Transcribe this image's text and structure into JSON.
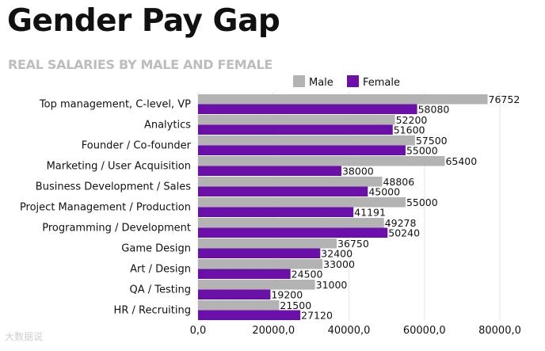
{
  "header": {
    "title": "Gender Pay Gap",
    "subtitle": "REAL SALARIES BY MALE AND FEMALE"
  },
  "watermark": "大数据说",
  "colors": {
    "male": "#b3b3b3",
    "female": "#6a0fa8"
  },
  "chart_data": {
    "type": "bar",
    "orientation": "horizontal",
    "categories": [
      "Top management, C-level, VP",
      "Analytics",
      "Founder / Co-founder",
      "Marketing / User Acquisition",
      "Business Development / Sales",
      "Project Management / Production",
      "Programming / Development",
      "Game Design",
      "Art / Design",
      "QA / Testing",
      "HR / Recruiting"
    ],
    "series": [
      {
        "name": "Male",
        "values": [
          76752,
          52200,
          57500,
          65400,
          48806,
          55000,
          49278,
          36750,
          33000,
          31000,
          21500
        ]
      },
      {
        "name": "Female",
        "values": [
          58080,
          51600,
          55000,
          38000,
          45000,
          41191,
          50240,
          32400,
          24500,
          19200,
          27120
        ]
      }
    ],
    "xlim": [
      0,
      80000
    ],
    "xticks": [
      0,
      20000,
      40000,
      60000,
      80000
    ],
    "xtick_labels": [
      "0,0",
      "20000,0",
      "40000,0",
      "60000,0",
      "80000,0"
    ],
    "grid": "vertical",
    "legend_position": "top-right"
  }
}
